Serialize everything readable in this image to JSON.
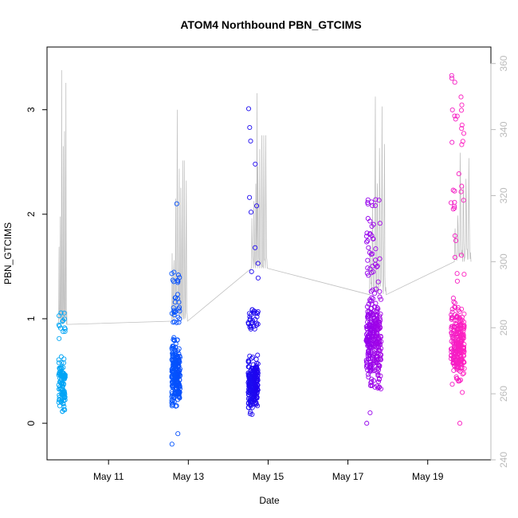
{
  "chart_data": {
    "type": "scatter",
    "title": "ATOM4 Northbound PBN_GTCIMS",
    "xlabel": "Date",
    "ylabel": "PBN_GTCIMS",
    "xlim": [
      "2018-05-09T11:00",
      "2018-05-20T14:00"
    ],
    "ylim": [
      -0.35,
      3.6
    ],
    "y2lim": [
      240,
      365
    ],
    "x_ticks": [
      {
        "date": "2018-05-11",
        "label": "May 11"
      },
      {
        "date": "2018-05-13",
        "label": "May 13"
      },
      {
        "date": "2018-05-15",
        "label": "May 15"
      },
      {
        "date": "2018-05-17",
        "label": "May 17"
      },
      {
        "date": "2018-05-19",
        "label": "May 19"
      }
    ],
    "y_ticks": [
      0,
      1,
      2,
      3
    ],
    "y2_ticks": [
      240,
      260,
      280,
      300,
      320,
      340,
      360
    ],
    "grid": false,
    "series": [
      {
        "marker": "open-circle",
        "color_scale": [
          "#00a7f5",
          "#0060ff",
          "#2000ee",
          "#9000ee",
          "#ff20c0"
        ],
        "clusters": [
          {
            "start": "2018-05-09T18:00",
            "end": "2018-05-09T22:00",
            "n": 120,
            "core": [
              0.0,
              0.75
            ],
            "high": [
              0.8,
              1.06
            ]
          },
          {
            "start": "2018-05-12T14:00",
            "end": "2018-05-12T19:00",
            "n": 260,
            "core": [
              0.05,
              0.9
            ],
            "high": [
              0.95,
              1.45
            ],
            "outliers": [
              2.1,
              -0.2,
              -0.1
            ]
          },
          {
            "start": "2018-05-14T12:00",
            "end": "2018-05-14T18:00",
            "n": 260,
            "core": [
              0.0,
              0.75
            ],
            "high": [
              0.9,
              1.1
            ],
            "outliers": [
              2.83,
              3.01,
              2.7,
              2.48,
              2.16,
              2.08,
              2.02,
              1.68,
              1.53,
              1.45,
              1.39
            ]
          },
          {
            "start": "2018-05-17T11:00",
            "end": "2018-05-17T20:00",
            "n": 330,
            "core": [
              0.2,
              1.4
            ],
            "high": [
              1.4,
              2.15
            ],
            "outliers": [
              0.1,
              0.0
            ]
          },
          {
            "start": "2018-05-19T14:00",
            "end": "2018-05-19T22:00",
            "n": 280,
            "core": [
              0.25,
              1.3
            ],
            "high": [
              1.3,
              3.42
            ],
            "outliers": [
              0.0
            ]
          }
        ]
      },
      {
        "axis": "right",
        "line_color": "#c0c0c0",
        "segments": [
          {
            "start": "2018-05-09T18:00",
            "end": "2018-05-09T23:00",
            "base": 281,
            "peak": 358,
            "spikes": 6
          },
          {
            "start": "2018-05-12T14:00",
            "end": "2018-05-12T23:30",
            "base": 282,
            "peak": 346,
            "spikes": 9
          },
          {
            "start": "2018-05-14T14:00",
            "end": "2018-05-14T23:30",
            "base": 298,
            "peak": 351,
            "spikes": 8
          },
          {
            "start": "2018-05-17T13:00",
            "end": "2018-05-17T23:00",
            "base": 290,
            "peak": 350,
            "spikes": 7
          },
          {
            "start": "2018-05-19T16:00",
            "end": "2018-05-20T02:00",
            "base": 300,
            "peak": 333,
            "spikes": 6
          }
        ]
      }
    ]
  }
}
